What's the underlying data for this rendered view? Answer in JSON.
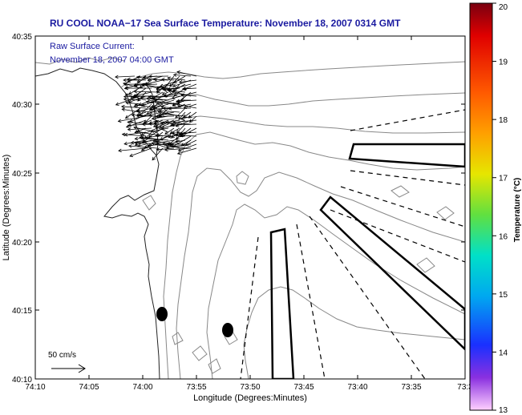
{
  "title": "RU COOL  NOAA−17  Sea Surface Temperature:  November 18, 2007 0314 GMT",
  "current_label": {
    "line1": "Raw Surface Current:",
    "line2": "November 18, 2007 04:00 GMT"
  },
  "axes": {
    "xlabel": "Longitude (Degrees:Minutes)",
    "ylabel": "Latitude (Degrees:Minutes)",
    "x_ticks": [
      "74:10",
      "74:05",
      "74:00",
      "73:55",
      "73:50",
      "73:45",
      "73:40",
      "73:35",
      "73:3"
    ],
    "y_ticks": [
      "40:35",
      "40:30",
      "40:25",
      "40:20",
      "40:15",
      "40:10"
    ]
  },
  "scale": {
    "label": "50 cm/s"
  },
  "colorbar": {
    "label": "Temperature (°C)",
    "ticks": [
      "20",
      "19",
      "18",
      "17",
      "16",
      "15",
      "14",
      "13"
    ],
    "min": 13,
    "max": 20
  }
}
